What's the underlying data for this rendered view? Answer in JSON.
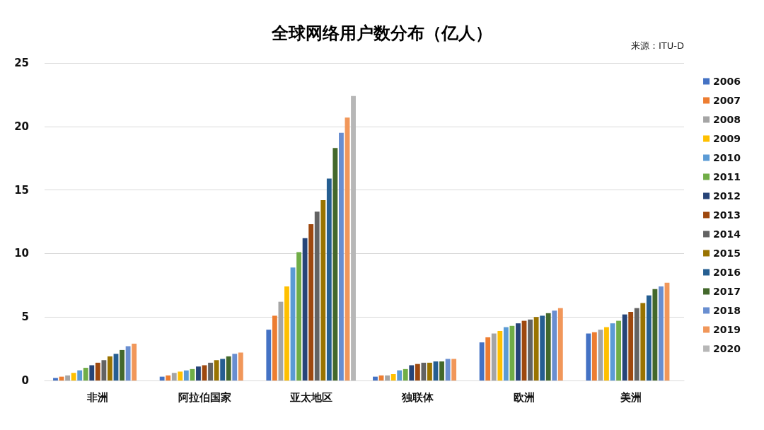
{
  "chart_data": {
    "type": "bar",
    "title": "全球网络用户数分布（亿人）",
    "annotations": [
      "来源：ITU-D"
    ],
    "categories": [
      "非洲",
      "阿拉伯国家",
      "亚太地区",
      "独联体",
      "欧洲",
      "美洲"
    ],
    "ylim": [
      0,
      25
    ],
    "yticks": [
      0,
      5,
      10,
      15,
      20,
      25
    ],
    "grid": "y",
    "legend": "right",
    "series": [
      {
        "name": "2006",
        "color": "#4472c4",
        "values": [
          0.2,
          0.3,
          4.0,
          0.3,
          3.0,
          3.7
        ]
      },
      {
        "name": "2007",
        "color": "#ed7d31",
        "values": [
          0.3,
          0.4,
          5.1,
          0.4,
          3.4,
          3.8
        ]
      },
      {
        "name": "2008",
        "color": "#a5a5a5",
        "values": [
          0.4,
          0.6,
          6.2,
          0.4,
          3.7,
          4.0
        ]
      },
      {
        "name": "2009",
        "color": "#ffc000",
        "values": [
          0.6,
          0.7,
          7.4,
          0.5,
          3.9,
          4.2
        ]
      },
      {
        "name": "2010",
        "color": "#5b9bd5",
        "values": [
          0.8,
          0.8,
          8.9,
          0.8,
          4.2,
          4.5
        ]
      },
      {
        "name": "2011",
        "color": "#70ad47",
        "values": [
          1.0,
          0.9,
          10.1,
          0.9,
          4.3,
          4.7
        ]
      },
      {
        "name": "2012",
        "color": "#264478",
        "values": [
          1.2,
          1.1,
          11.2,
          1.2,
          4.5,
          5.2
        ]
      },
      {
        "name": "2013",
        "color": "#9e480e",
        "values": [
          1.4,
          1.2,
          12.3,
          1.3,
          4.7,
          5.4
        ]
      },
      {
        "name": "2014",
        "color": "#636363",
        "values": [
          1.6,
          1.4,
          13.3,
          1.4,
          4.8,
          5.7
        ]
      },
      {
        "name": "2015",
        "color": "#997300",
        "values": [
          1.9,
          1.6,
          14.2,
          1.4,
          5.0,
          6.1
        ]
      },
      {
        "name": "2016",
        "color": "#255e91",
        "values": [
          2.1,
          1.7,
          15.9,
          1.5,
          5.1,
          6.7
        ]
      },
      {
        "name": "2017",
        "color": "#43682b",
        "values": [
          2.4,
          1.9,
          18.3,
          1.5,
          5.3,
          7.2
        ]
      },
      {
        "name": "2018",
        "color": "#698ed0",
        "values": [
          2.7,
          2.1,
          19.5,
          1.7,
          5.5,
          7.4
        ]
      },
      {
        "name": "2019",
        "color": "#f1975a",
        "values": [
          2.9,
          2.2,
          20.7,
          1.7,
          5.7,
          7.7
        ]
      },
      {
        "name": "2020",
        "color": "#b7b7b7",
        "values": [
          null,
          null,
          22.4,
          null,
          null,
          null
        ]
      }
    ]
  }
}
